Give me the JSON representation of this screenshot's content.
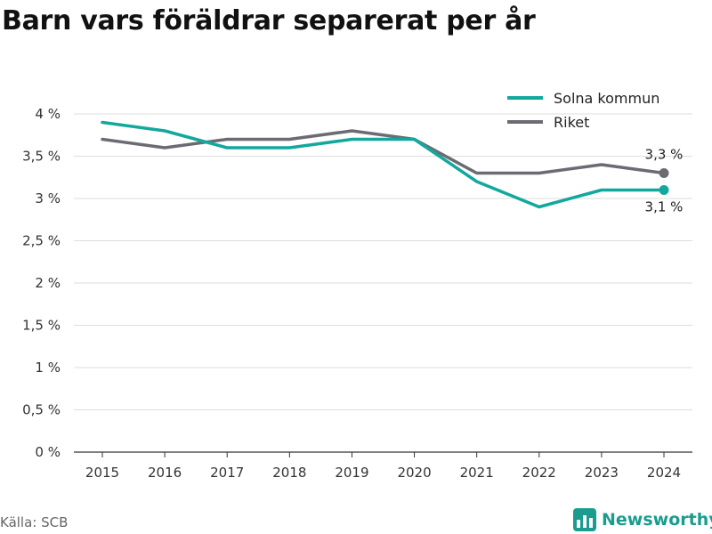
{
  "chart_data": {
    "type": "line",
    "title": "Barn vars föräldrar separerat per år",
    "x": [
      "2015",
      "2016",
      "2017",
      "2018",
      "2019",
      "2020",
      "2021",
      "2022",
      "2023",
      "2024"
    ],
    "ylim": [
      0,
      4
    ],
    "yticks": [
      0,
      0.5,
      1,
      1.5,
      2,
      2.5,
      3,
      3.5,
      4
    ],
    "ytick_labels": [
      "0 %",
      "0,5 %",
      "1 %",
      "1,5 %",
      "2 %",
      "2,5 %",
      "3 %",
      "3,5 %",
      "4 %"
    ],
    "grid": true,
    "legend_position": "top-right",
    "series": [
      {
        "name": "Solna kommun",
        "color": "#13a89e",
        "values": [
          3.9,
          3.8,
          3.6,
          3.6,
          3.7,
          3.7,
          3.2,
          2.9,
          3.1,
          3.1
        ],
        "end_label": "3,1 %"
      },
      {
        "name": "Riket",
        "color": "#6b6b73",
        "values": [
          3.7,
          3.6,
          3.7,
          3.7,
          3.8,
          3.7,
          3.3,
          3.3,
          3.4,
          3.3
        ],
        "end_label": "3,3 %"
      }
    ]
  },
  "source": "Källa: SCB",
  "brand": {
    "name": "Newsworthy",
    "icon": "newsworthy-logo-icon",
    "color": "#1a9c8e"
  }
}
